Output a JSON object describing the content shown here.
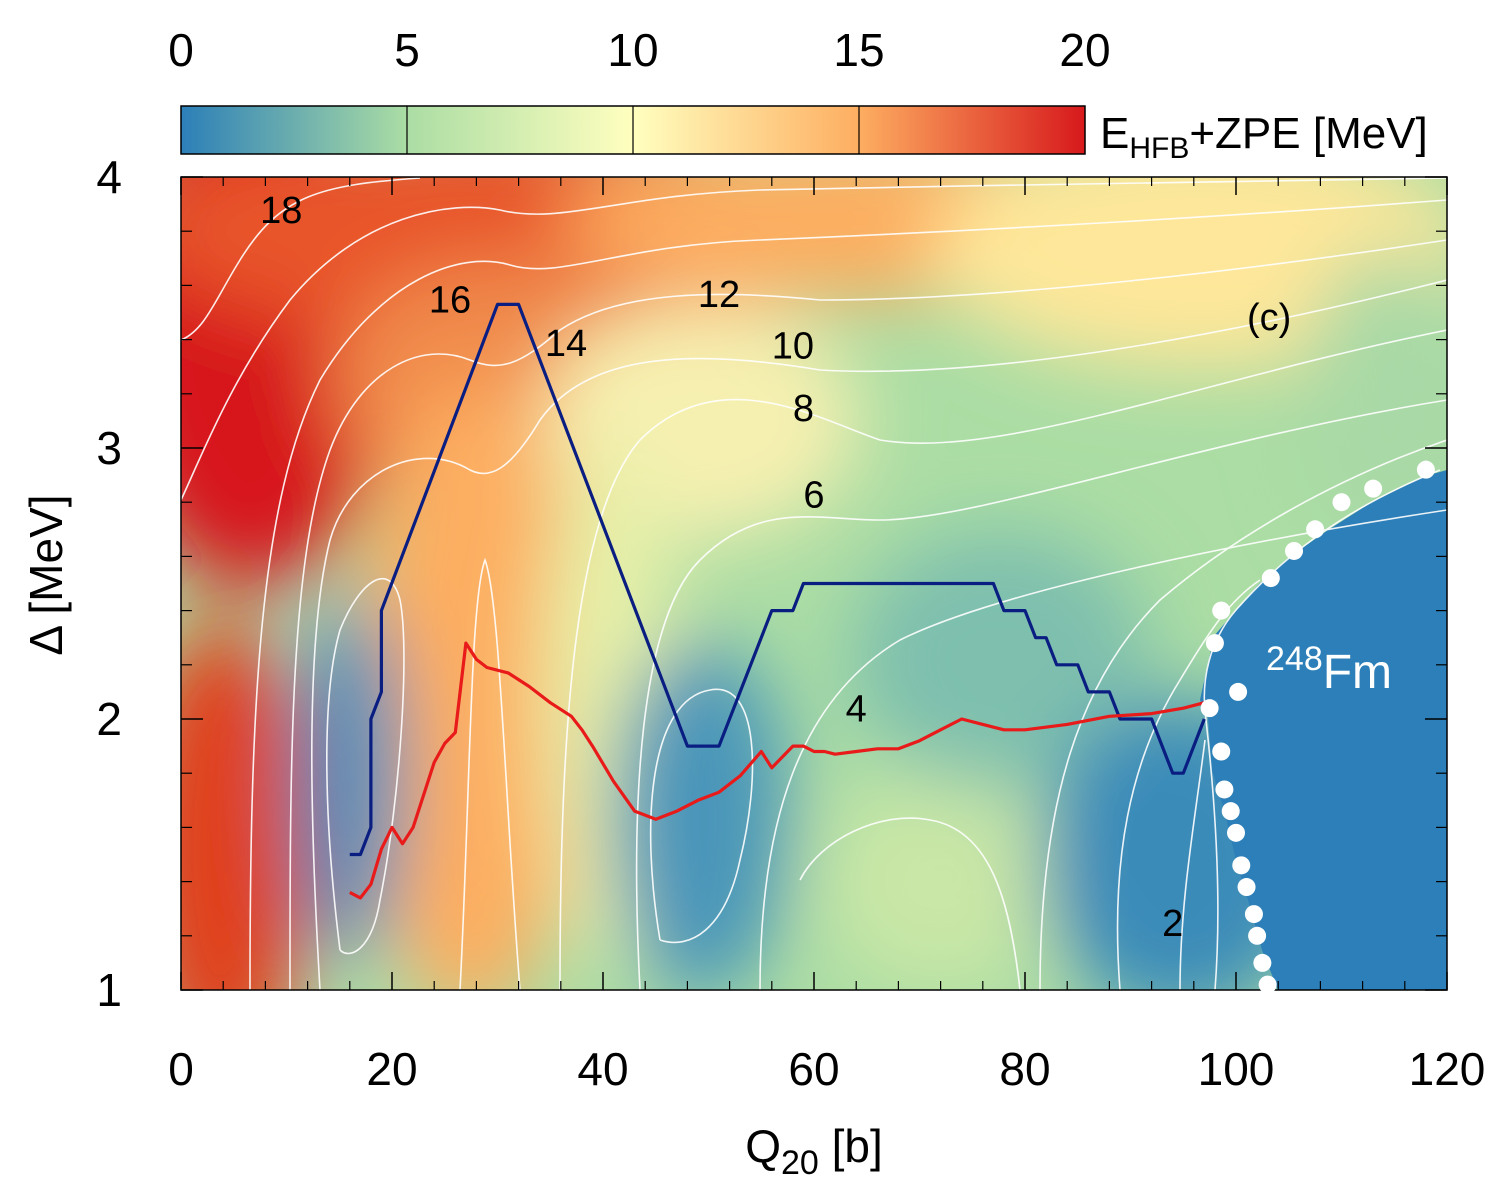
{
  "chart_data": {
    "type": "heatmap",
    "title": "",
    "xlabel": "Q",
    "xlabel_sub": "20",
    "xlabel_unit": " [b]",
    "ylabel": "Δ [MeV]",
    "xlim": [
      0,
      120
    ],
    "ylim": [
      1,
      4
    ],
    "x_ticks": [
      0,
      20,
      40,
      60,
      80,
      100,
      120
    ],
    "y_ticks": [
      1,
      2,
      3,
      4
    ],
    "colorbar": {
      "label_main": "E",
      "label_sub": "HFB",
      "label_rest": "+ZPE [MeV]",
      "range": [
        0,
        20
      ],
      "ticks": [
        0,
        5,
        10,
        15,
        20
      ],
      "colors": [
        "#2c7fb8",
        "#abdda4",
        "#ffffbf",
        "#fdae61",
        "#d7191c"
      ]
    },
    "panel_label": "(c)",
    "nucleus": {
      "mass": "248",
      "symbol": "Fm"
    },
    "contour_labels": [
      {
        "text": "18",
        "x": 9.5,
        "y": 3.83
      },
      {
        "text": "16",
        "x": 25.5,
        "y": 3.5
      },
      {
        "text": "14",
        "x": 36.5,
        "y": 3.34
      },
      {
        "text": "12",
        "x": 51,
        "y": 3.52
      },
      {
        "text": "10",
        "x": 58,
        "y": 3.33
      },
      {
        "text": "8",
        "x": 59,
        "y": 3.1
      },
      {
        "text": "6",
        "x": 60,
        "y": 2.78
      },
      {
        "text": "4",
        "x": 64,
        "y": 1.99
      },
      {
        "text": "2",
        "x": 94,
        "y": 1.2
      }
    ],
    "series": [
      {
        "color": "#0a1e82",
        "points": [
          [
            16,
            1.5
          ],
          [
            17,
            1.5
          ],
          [
            18,
            1.6
          ],
          [
            18,
            2.0
          ],
          [
            19,
            2.1
          ],
          [
            19,
            2.4
          ],
          [
            30,
            3.53
          ],
          [
            32,
            3.53
          ],
          [
            48,
            1.9
          ],
          [
            51,
            1.9
          ],
          [
            56,
            2.4
          ],
          [
            58,
            2.4
          ],
          [
            59,
            2.5
          ],
          [
            77,
            2.5
          ],
          [
            78,
            2.4
          ],
          [
            80,
            2.4
          ],
          [
            81,
            2.3
          ],
          [
            82,
            2.3
          ],
          [
            83,
            2.2
          ],
          [
            85,
            2.2
          ],
          [
            86,
            2.1
          ],
          [
            88,
            2.1
          ],
          [
            89,
            2.0
          ],
          [
            92,
            2.0
          ],
          [
            94,
            1.8
          ],
          [
            95,
            1.8
          ],
          [
            97,
            2.0
          ]
        ]
      },
      {
        "color": "#e81a1a",
        "points": [
          [
            16,
            1.36
          ],
          [
            17,
            1.34
          ],
          [
            18,
            1.39
          ],
          [
            19,
            1.52
          ],
          [
            20,
            1.6
          ],
          [
            21,
            1.54
          ],
          [
            22,
            1.6
          ],
          [
            24,
            1.84
          ],
          [
            25,
            1.91
          ],
          [
            26,
            1.95
          ],
          [
            27,
            2.28
          ],
          [
            28,
            2.22
          ],
          [
            29,
            2.19
          ],
          [
            31,
            2.17
          ],
          [
            33,
            2.12
          ],
          [
            35,
            2.06
          ],
          [
            37,
            2.01
          ],
          [
            38,
            1.96
          ],
          [
            39,
            1.9
          ],
          [
            41,
            1.77
          ],
          [
            43,
            1.66
          ],
          [
            45,
            1.63
          ],
          [
            47,
            1.66
          ],
          [
            49,
            1.7
          ],
          [
            51,
            1.73
          ],
          [
            53,
            1.79
          ],
          [
            55,
            1.88
          ],
          [
            56,
            1.82
          ],
          [
            57,
            1.86
          ],
          [
            58,
            1.9
          ],
          [
            59,
            1.9
          ],
          [
            60,
            1.88
          ],
          [
            61,
            1.88
          ],
          [
            62,
            1.87
          ],
          [
            64,
            1.88
          ],
          [
            66,
            1.89
          ],
          [
            68,
            1.89
          ],
          [
            70,
            1.92
          ],
          [
            72,
            1.96
          ],
          [
            74,
            2.0
          ],
          [
            76,
            1.98
          ],
          [
            78,
            1.96
          ],
          [
            80,
            1.96
          ],
          [
            84,
            1.98
          ],
          [
            88,
            2.01
          ],
          [
            92,
            2.02
          ],
          [
            95,
            2.04
          ],
          [
            97,
            2.06
          ]
        ]
      }
    ],
    "boundary_dots": [
      [
        97.5,
        2.04
      ],
      [
        98,
        2.28
      ],
      [
        98.6,
        2.4
      ],
      [
        100.2,
        2.1
      ],
      [
        98.6,
        1.88
      ],
      [
        98.9,
        1.74
      ],
      [
        99.5,
        1.66
      ],
      [
        100,
        1.58
      ],
      [
        100.5,
        1.46
      ],
      [
        101,
        1.38
      ],
      [
        101.7,
        1.28
      ],
      [
        102,
        1.2
      ],
      [
        102.5,
        1.1
      ],
      [
        103,
        1.02
      ],
      [
        103.3,
        2.52
      ],
      [
        105.5,
        2.62
      ],
      [
        107.5,
        2.7
      ],
      [
        110,
        2.8
      ],
      [
        113,
        2.85
      ],
      [
        118,
        2.92
      ]
    ]
  }
}
